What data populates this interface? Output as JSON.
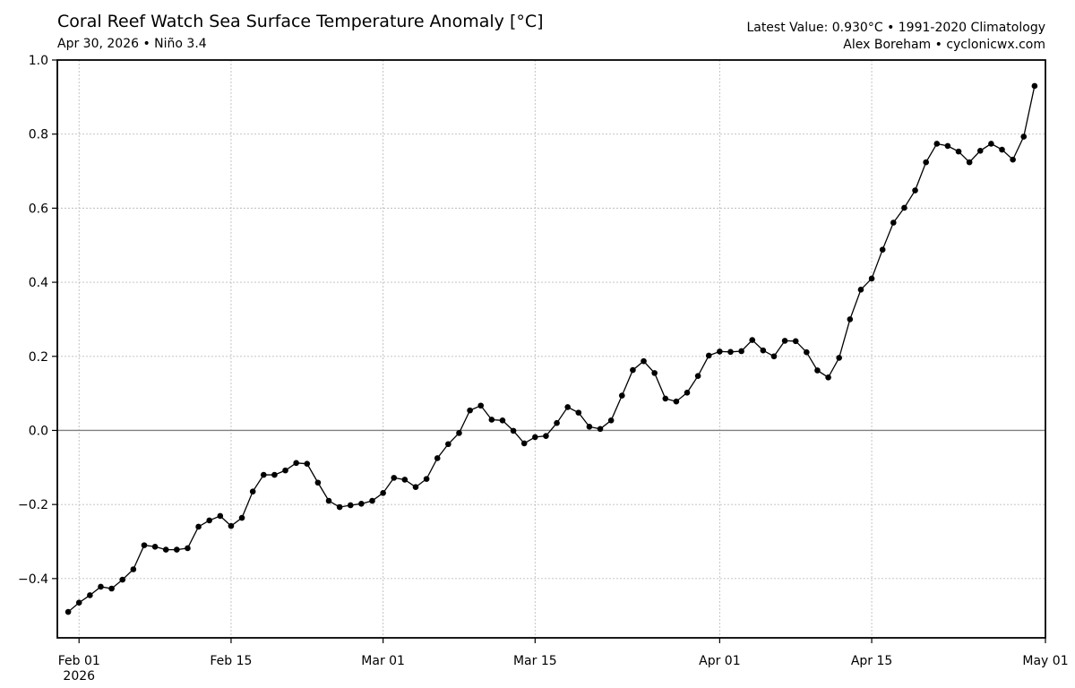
{
  "header": {
    "title": "Coral Reef Watch Sea Surface Temperature Anomaly [°C]",
    "subtitle": "Apr 30, 2026 • Niño 3.4",
    "info_line1": "Latest Value: 0.930°C • 1991-2020 Climatology",
    "info_line2": "Alex Boreham • cyclonicwx.com"
  },
  "chart_data": {
    "type": "line",
    "title": "Coral Reef Watch Sea Surface Temperature Anomaly [°C]",
    "subtitle": "Apr 30, 2026 • Niño 3.4",
    "xlabel": "",
    "ylabel": "",
    "x_start": "2026-01-31",
    "x_end": "2026-04-30",
    "xlim": [
      "2026-01-30",
      "2026-05-01"
    ],
    "ylim": [
      -0.56,
      1.0
    ],
    "yticks": [
      -0.4,
      -0.2,
      0.0,
      0.2,
      0.4,
      0.6,
      0.8,
      1.0
    ],
    "ytick_labels": [
      "−0.4",
      "−0.2",
      "0.0",
      "0.2",
      "0.4",
      "0.6",
      "0.8",
      "1.0"
    ],
    "xticks": [
      {
        "date": "2026-02-01",
        "label": "Feb 01",
        "sublabel": "2026"
      },
      {
        "date": "2026-02-15",
        "label": "Feb 15",
        "sublabel": ""
      },
      {
        "date": "2026-03-01",
        "label": "Mar 01",
        "sublabel": ""
      },
      {
        "date": "2026-03-15",
        "label": "Mar 15",
        "sublabel": ""
      },
      {
        "date": "2026-04-01",
        "label": "Apr 01",
        "sublabel": ""
      },
      {
        "date": "2026-04-15",
        "label": "Apr 15",
        "sublabel": ""
      },
      {
        "date": "2026-05-01",
        "label": "May 01",
        "sublabel": ""
      }
    ],
    "grid": true,
    "zero_line": true,
    "series": [
      {
        "name": "",
        "color": "#000000",
        "values": [
          -0.49,
          -0.465,
          -0.445,
          -0.422,
          -0.427,
          -0.403,
          -0.375,
          -0.31,
          -0.314,
          -0.322,
          -0.322,
          -0.318,
          -0.26,
          -0.243,
          -0.231,
          -0.258,
          -0.236,
          -0.165,
          -0.12,
          -0.12,
          -0.108,
          -0.088,
          -0.09,
          -0.141,
          -0.19,
          -0.207,
          -0.202,
          -0.198,
          -0.19,
          -0.169,
          -0.128,
          -0.133,
          -0.153,
          -0.131,
          -0.075,
          -0.037,
          -0.007,
          0.054,
          0.067,
          0.029,
          0.027,
          -0.001,
          -0.035,
          -0.018,
          -0.015,
          0.02,
          0.063,
          0.048,
          0.01,
          0.004,
          0.027,
          0.094,
          0.163,
          0.187,
          0.155,
          0.086,
          0.078,
          0.102,
          0.147,
          0.202,
          0.213,
          0.212,
          0.214,
          0.244,
          0.216,
          0.2,
          0.242,
          0.241,
          0.211,
          0.162,
          0.143,
          0.196,
          0.3,
          0.38,
          0.41,
          0.488,
          0.561,
          0.601,
          0.648,
          0.724,
          0.774,
          0.768,
          0.753,
          0.724,
          0.755,
          0.774,
          0.758,
          0.731,
          0.793,
          0.93
        ]
      }
    ]
  }
}
